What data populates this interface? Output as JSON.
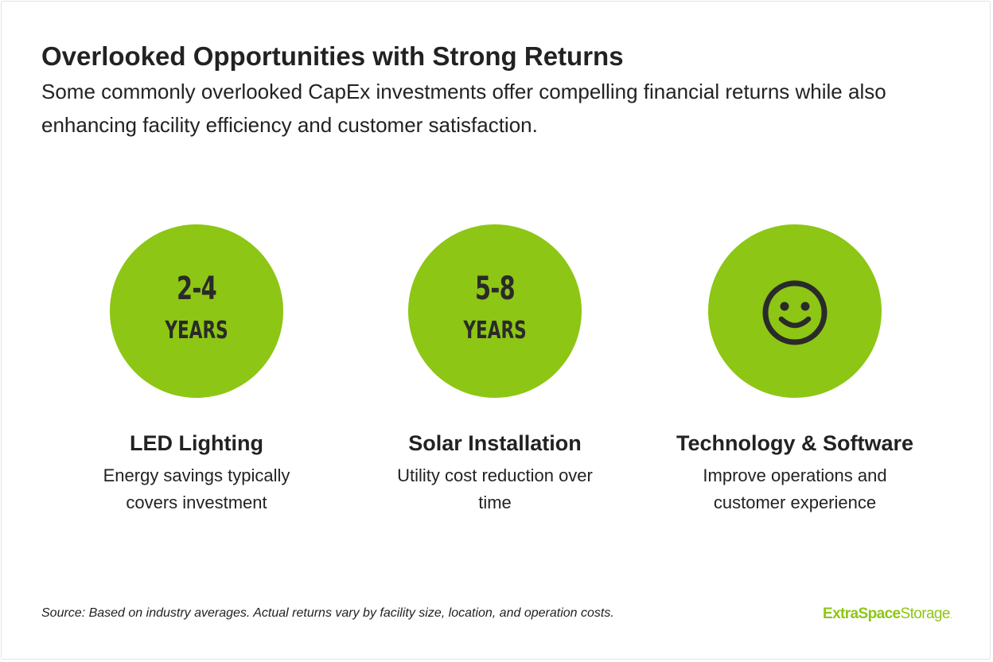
{
  "header": {
    "title": "Overlooked Opportunities with Strong Returns",
    "subtitle": "Some commonly overlooked CapEx investments offer compelling financial returns while also enhancing facility efficiency and customer satisfaction."
  },
  "cards": [
    {
      "value": "2-4",
      "unit": "YEARS",
      "title": "LED Lighting",
      "description": "Energy savings typically covers investment"
    },
    {
      "value": "5-8",
      "unit": "YEARS",
      "title": "Solar Installation",
      "description": "Utility cost reduction over time"
    },
    {
      "icon": "smiley-face-icon",
      "title": "Technology & Software",
      "description": "Improve operations and customer experience"
    }
  ],
  "footer": {
    "source": "Source: Based on industry averages. Actual returns vary by facility size, location, and operation costs.",
    "logo": {
      "part1": "Extra",
      "part2": "Space",
      "part3": "Storage",
      "part4": "."
    }
  },
  "colors": {
    "accent": "#8dc614",
    "text": "#222222",
    "background": "#ffffff"
  }
}
